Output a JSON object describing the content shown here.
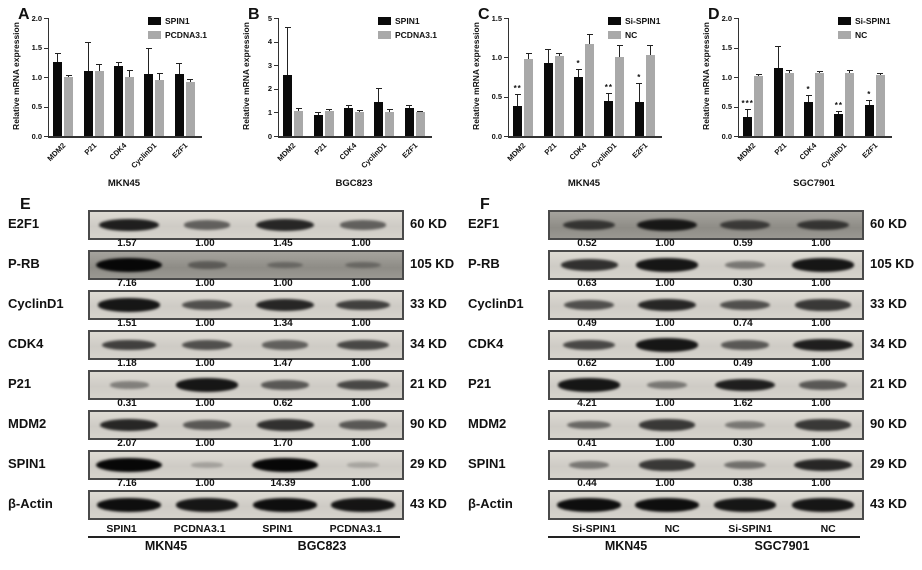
{
  "figure": {
    "background": "#ffffff",
    "bar_black": "#0a0a0a",
    "bar_gray": "#a9a9a9"
  },
  "chart_data": [
    {
      "type": "bar",
      "panel": "A",
      "title": "",
      "xlabel": "MKN45",
      "ylabel": "Relative mRNA expression",
      "categories": [
        "MDM2",
        "P21",
        "CDK4",
        "CyclinD1",
        "E2F1"
      ],
      "ylim": [
        0,
        2.0
      ],
      "yticks": [
        "0.0",
        "0.5",
        "1.0",
        "1.5",
        "2.0"
      ],
      "legend_position": "top-right",
      "grid": false,
      "series": [
        {
          "name": "SPIN1",
          "color": "#0a0a0a",
          "values": [
            1.25,
            1.1,
            1.18,
            1.05,
            1.05
          ],
          "errors": [
            0.15,
            0.5,
            0.07,
            0.45,
            0.18
          ],
          "sig": [
            "",
            "",
            "",
            "",
            ""
          ]
        },
        {
          "name": "PCDNA3.1",
          "color": "#a9a9a9",
          "values": [
            1.0,
            1.1,
            1.0,
            0.95,
            0.92
          ],
          "errors": [
            0.03,
            0.12,
            0.12,
            0.12,
            0.05
          ],
          "sig": [
            "",
            "",
            "",
            "",
            ""
          ]
        }
      ]
    },
    {
      "type": "bar",
      "panel": "B",
      "title": "",
      "xlabel": "BGC823",
      "ylabel": "Relative mRNA expression",
      "categories": [
        "MDM2",
        "P21",
        "CDK4",
        "CyclinD1",
        "E2F1"
      ],
      "ylim": [
        0,
        5
      ],
      "yticks": [
        "0",
        "1",
        "2",
        "3",
        "4",
        "5"
      ],
      "legend_position": "top-right",
      "grid": false,
      "series": [
        {
          "name": "SPIN1",
          "color": "#0a0a0a",
          "values": [
            2.6,
            0.9,
            1.2,
            1.45,
            1.2
          ],
          "errors": [
            2.0,
            0.1,
            0.12,
            0.6,
            0.12
          ],
          "sig": [
            "",
            "",
            "",
            "",
            ""
          ]
        },
        {
          "name": "PCDNA3.1",
          "color": "#a9a9a9",
          "values": [
            1.05,
            1.05,
            1.0,
            1.0,
            1.0
          ],
          "errors": [
            0.15,
            0.08,
            0.12,
            0.15,
            0.08
          ],
          "sig": [
            "",
            "",
            "",
            "",
            ""
          ]
        }
      ]
    },
    {
      "type": "bar",
      "panel": "C",
      "title": "",
      "xlabel": "MKN45",
      "ylabel": "Relative mRNA expression",
      "categories": [
        "MDM2",
        "P21",
        "CDK4",
        "CyclinD1",
        "E2F1"
      ],
      "ylim": [
        0,
        1.5
      ],
      "yticks": [
        "0.0",
        "0.5",
        "1.0",
        "1.5"
      ],
      "legend_position": "top-right",
      "grid": false,
      "series": [
        {
          "name": "Si-SPIN1",
          "color": "#0a0a0a",
          "values": [
            0.38,
            0.93,
            0.75,
            0.45,
            0.43
          ],
          "errors": [
            0.15,
            0.18,
            0.1,
            0.1,
            0.25
          ],
          "sig": [
            "**",
            "",
            "*",
            "**",
            "*"
          ]
        },
        {
          "name": "NC",
          "color": "#a9a9a9",
          "values": [
            0.98,
            1.02,
            1.17,
            1.01,
            1.03
          ],
          "errors": [
            0.07,
            0.03,
            0.13,
            0.15,
            0.13
          ],
          "sig": [
            "",
            "",
            "",
            "",
            ""
          ]
        }
      ]
    },
    {
      "type": "bar",
      "panel": "D",
      "title": "",
      "xlabel": "SGC7901",
      "ylabel": "Relative mRNA expression",
      "categories": [
        "MDM2",
        "P21",
        "CDK4",
        "CyclinD1",
        "E2F1"
      ],
      "ylim": [
        0,
        2.0
      ],
      "yticks": [
        "0.0",
        "0.5",
        "1.0",
        "1.5",
        "2.0"
      ],
      "legend_position": "top-right",
      "grid": false,
      "series": [
        {
          "name": "Si-SPIN1",
          "color": "#0a0a0a",
          "values": [
            0.33,
            1.15,
            0.57,
            0.38,
            0.53
          ],
          "errors": [
            0.12,
            0.37,
            0.13,
            0.05,
            0.08
          ],
          "sig": [
            "***",
            "",
            "*",
            "**",
            "*"
          ]
        },
        {
          "name": "NC",
          "color": "#a9a9a9",
          "values": [
            1.02,
            1.07,
            1.06,
            1.07,
            1.03
          ],
          "errors": [
            0.03,
            0.05,
            0.05,
            0.05,
            0.04
          ],
          "sig": [
            "",
            "",
            "",
            "",
            ""
          ]
        }
      ]
    }
  ],
  "blots": [
    {
      "panel": "E",
      "rows": [
        {
          "protein": "E2F1",
          "kd": "60 KD",
          "values": [
            "1.57",
            "1.00",
            "1.45",
            "1.00"
          ],
          "bands": [
            0.85,
            0.45,
            0.8,
            0.45
          ],
          "dark": false
        },
        {
          "protein": "P-RB",
          "kd": "105 KD",
          "values": [
            "7.16",
            "1.00",
            "1.00",
            "1.00"
          ],
          "bands": [
            1.0,
            0.25,
            0.15,
            0.15
          ],
          "dark": true
        },
        {
          "protein": "CyclinD1",
          "kd": "33 KD",
          "values": [
            "1.51",
            "1.00",
            "1.34",
            "1.00"
          ],
          "bands": [
            0.9,
            0.55,
            0.8,
            0.65
          ],
          "dark": false
        },
        {
          "protein": "CDK4",
          "kd": "34 KD",
          "values": [
            "1.18",
            "1.00",
            "1.47",
            "1.00"
          ],
          "bands": [
            0.65,
            0.55,
            0.45,
            0.6
          ],
          "dark": false
        },
        {
          "protein": "P21",
          "kd": "21 KD",
          "values": [
            "0.31",
            "1.00",
            "0.62",
            "1.00"
          ],
          "bands": [
            0.25,
            0.9,
            0.5,
            0.6
          ],
          "dark": false
        },
        {
          "protein": "MDM2",
          "kd": "90 KD",
          "values": [
            "2.07",
            "1.00",
            "1.70",
            "1.00"
          ],
          "bands": [
            0.8,
            0.5,
            0.75,
            0.5
          ],
          "dark": false
        },
        {
          "protein": "SPIN1",
          "kd": "29 KD",
          "values": [
            "7.16",
            "1.00",
            "14.39",
            "1.00"
          ],
          "bands": [
            1.0,
            0.05,
            1.0,
            0.03
          ],
          "dark": false
        },
        {
          "protein": "β-Actin",
          "kd": "43 KD",
          "values": [],
          "bands": [
            0.95,
            0.9,
            0.95,
            0.92
          ],
          "dark": false
        }
      ],
      "lane_groups": [
        {
          "label": "MKN45",
          "lanes": [
            "SPIN1",
            "PCDNA3.1"
          ]
        },
        {
          "label": "BGC823",
          "lanes": [
            "SPIN1",
            "PCDNA3.1"
          ]
        }
      ]
    },
    {
      "panel": "F",
      "rows": [
        {
          "protein": "E2F1",
          "kd": "60 KD",
          "values": [
            "0.52",
            "1.00",
            "0.59",
            "1.00"
          ],
          "bands": [
            0.6,
            0.85,
            0.55,
            0.6
          ],
          "dark": true
        },
        {
          "protein": "P-RB",
          "kd": "105 KD",
          "values": [
            "0.63",
            "1.00",
            "0.30",
            "1.00"
          ],
          "bands": [
            0.75,
            0.9,
            0.3,
            0.9
          ],
          "dark": false
        },
        {
          "protein": "CyclinD1",
          "kd": "33 KD",
          "values": [
            "0.49",
            "1.00",
            "0.74",
            "1.00"
          ],
          "bands": [
            0.55,
            0.8,
            0.55,
            0.7
          ],
          "dark": false
        },
        {
          "protein": "CDK4",
          "kd": "34 KD",
          "values": [
            "0.62",
            "1.00",
            "0.49",
            "1.00"
          ],
          "bands": [
            0.6,
            0.9,
            0.5,
            0.85
          ],
          "dark": false
        },
        {
          "protein": "P21",
          "kd": "21 KD",
          "values": [
            "4.21",
            "1.00",
            "1.62",
            "1.00"
          ],
          "bands": [
            0.9,
            0.3,
            0.85,
            0.5
          ],
          "dark": false
        },
        {
          "protein": "MDM2",
          "kd": "90 KD",
          "values": [
            "0.41",
            "1.00",
            "0.30",
            "1.00"
          ],
          "bands": [
            0.4,
            0.7,
            0.3,
            0.7
          ],
          "dark": false
        },
        {
          "protein": "SPIN1",
          "kd": "29 KD",
          "values": [
            "0.44",
            "1.00",
            "0.38",
            "1.00"
          ],
          "bands": [
            0.3,
            0.7,
            0.35,
            0.8
          ],
          "dark": false
        },
        {
          "protein": "β-Actin",
          "kd": "43 KD",
          "values": [],
          "bands": [
            0.95,
            0.95,
            0.9,
            0.9
          ],
          "dark": false
        }
      ],
      "lane_groups": [
        {
          "label": "MKN45",
          "lanes": [
            "Si-SPIN1",
            "NC"
          ]
        },
        {
          "label": "SGC7901",
          "lanes": [
            "Si-SPIN1",
            "NC"
          ]
        }
      ]
    }
  ]
}
